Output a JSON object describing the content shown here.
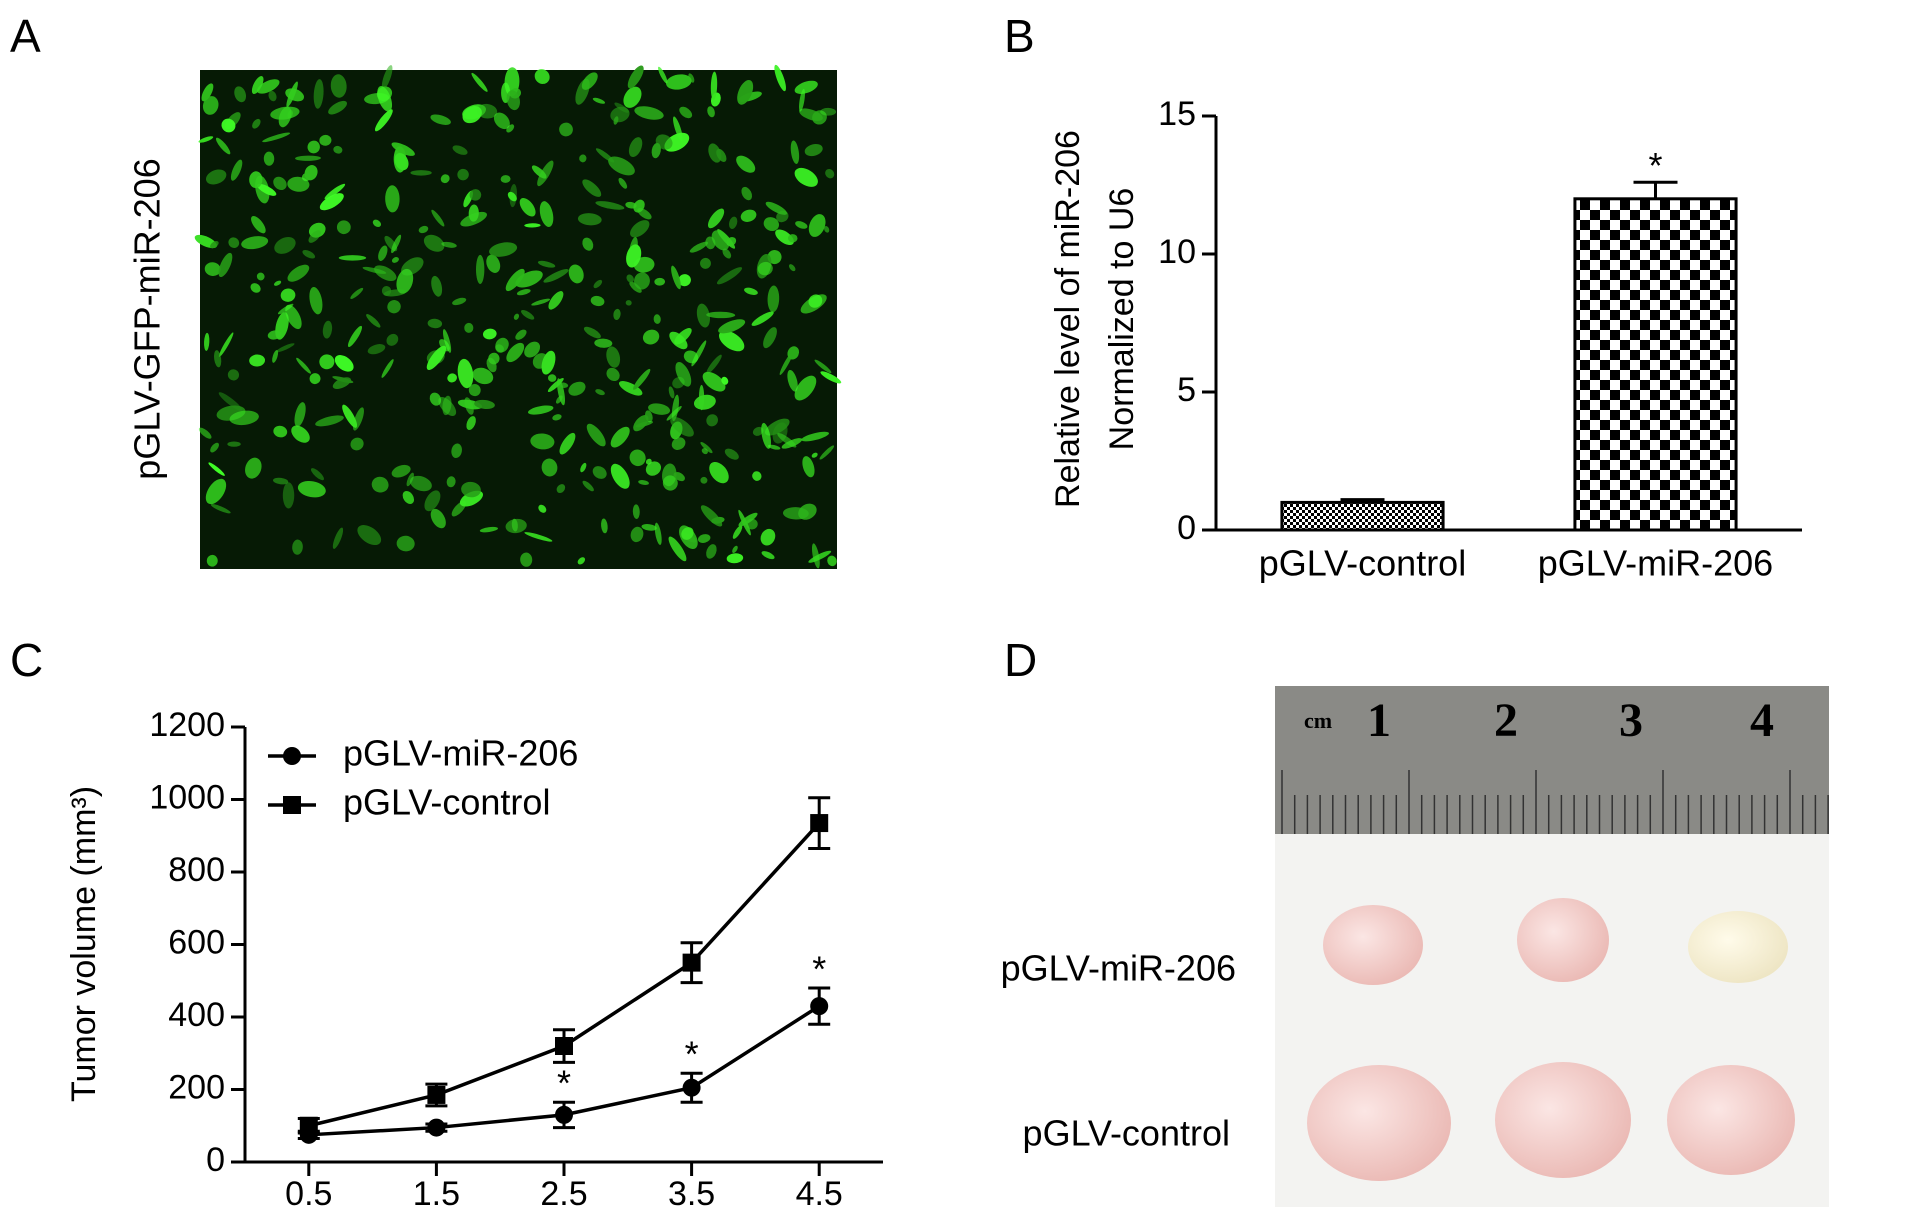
{
  "panel_labels": [
    "A",
    "B",
    "C",
    "D"
  ],
  "image_a": {
    "label": "pGLV-GFP-miR-206"
  },
  "image_d": {
    "ruler_unit": "cm",
    "ruler_numbers": [
      "1",
      "2",
      "3",
      "4"
    ],
    "row_labels": [
      "pGLV-miR-206",
      "pGLV-control"
    ]
  },
  "chart_data": [
    {
      "type": "bar",
      "ylabel": [
        "Relative level of miR-206",
        "Normalized to U6"
      ],
      "categories": [
        "pGLV-control",
        "pGLV-miR-206"
      ],
      "values": [
        1,
        12
      ],
      "errors": [
        0.1,
        0.6
      ],
      "significance": [
        null,
        "*"
      ],
      "patterns": [
        "dots",
        "checker"
      ],
      "color": "#000000",
      "ylim": [
        0,
        15
      ],
      "yticks": [
        0,
        5,
        10,
        15
      ]
    },
    {
      "type": "line",
      "ylabel": "Tumor volume (mm³)",
      "x": [
        0.5,
        1.5,
        2.5,
        3.5,
        4.5
      ],
      "xlim": [
        0,
        5
      ],
      "xticks": [
        0.5,
        1.5,
        2.5,
        3.5,
        4.5
      ],
      "ylim": [
        0,
        1200
      ],
      "yticks": [
        0,
        200,
        400,
        600,
        800,
        1000,
        1200
      ],
      "legend": "upper left",
      "series": [
        {
          "name": "pGLV-miR-206",
          "color": "#000000",
          "marker": "circle",
          "values": [
            75,
            95,
            130,
            205,
            430
          ],
          "errors": [
            10,
            10,
            35,
            40,
            50
          ],
          "significance": [
            null,
            null,
            "*",
            "*",
            "*"
          ]
        },
        {
          "name": "pGLV-control",
          "color": "#000000",
          "marker": "square",
          "values": [
            100,
            185,
            320,
            550,
            935
          ],
          "errors": [
            20,
            30,
            45,
            55,
            70
          ]
        }
      ]
    }
  ]
}
